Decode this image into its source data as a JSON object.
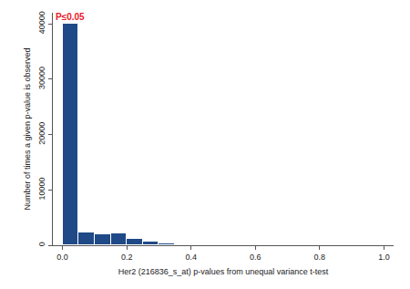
{
  "chart_data": {
    "type": "histogram",
    "x_label": "Her2 (216836_s_at) p-values from unequal variance t-test",
    "y_label": "Number of times a given p-value is observed",
    "annotations": [
      {
        "text": "P≤0.05",
        "x": 0.025,
        "y": 40000,
        "color": "#e8202a"
      }
    ],
    "bins": [
      0,
      0.05,
      0.1,
      0.15,
      0.2,
      0.25,
      0.3,
      0.35,
      0.4,
      0.45,
      0.5,
      0.55,
      0.6,
      0.65,
      0.7,
      0.75,
      0.8,
      0.85,
      0.9,
      0.95,
      1
    ],
    "values": [
      40000,
      2300,
      1900,
      2100,
      1200,
      700,
      400,
      200,
      80,
      30,
      15,
      8,
      5,
      3,
      2,
      1,
      1,
      0,
      0,
      0
    ],
    "color": "#1f4a87",
    "xlim": [
      -0.03,
      1.03
    ],
    "xticks": [
      {
        "value": 0,
        "label": "0.0"
      },
      0.2,
      0.4,
      0.6,
      0.8,
      {
        "value": 1,
        "label": "1.0"
      }
    ],
    "ylim": [
      0,
      42000
    ],
    "yticks": [
      0,
      10000,
      20000,
      30000,
      40000
    ],
    "grid": false
  }
}
